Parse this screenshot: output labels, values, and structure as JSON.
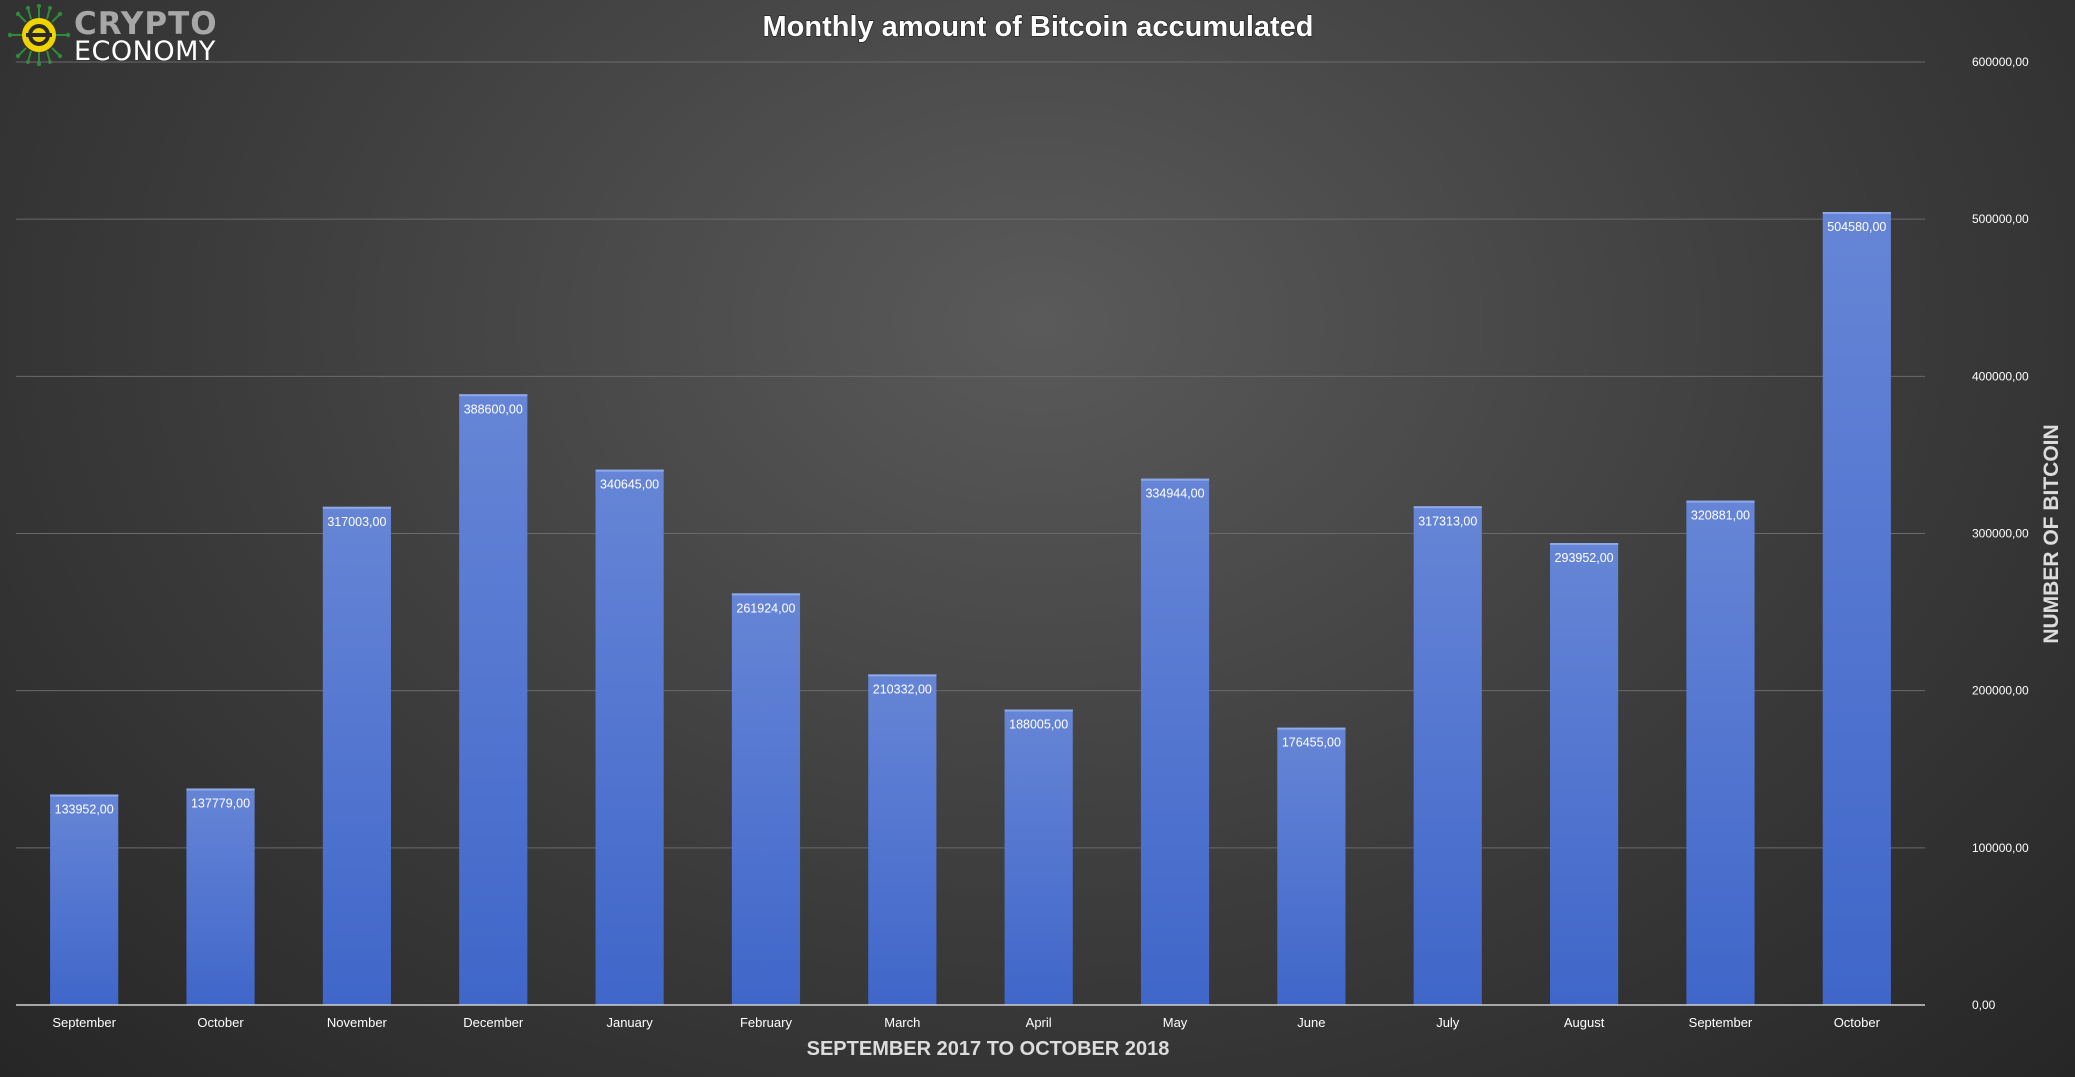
{
  "logo": {
    "line1": "CRYPTO",
    "line2": "ECONOMY"
  },
  "colors": {
    "bar_light": "#6685d6",
    "bar_dark": "#3f66c9",
    "text": "#ffffff",
    "grid": "#6a6a6a",
    "axis": "#cfcfcf"
  },
  "chart_data": {
    "type": "bar",
    "title": "Monthly amount of Bitcoin accumulated",
    "xlabel": "SEPTEMBER 2017 TO OCTOBER 2018",
    "ylabel": "NUMBER OF BITCOIN",
    "categories": [
      "September",
      "October",
      "November",
      "December",
      "January",
      "February",
      "March",
      "April",
      "May",
      "June",
      "July",
      "August",
      "September",
      "October"
    ],
    "values": [
      133952,
      137779,
      317003,
      388600,
      340645,
      261924,
      210332,
      188005,
      334944,
      176455,
      317313,
      293952,
      320881,
      504580
    ],
    "data_labels": [
      "133952,00",
      "137779,00",
      "317003,00",
      "388600,00",
      "340645,00",
      "261924,00",
      "210332,00",
      "188005,00",
      "334944,00",
      "176455,00",
      "317313,00",
      "293952,00",
      "320881,00",
      "504580,00"
    ],
    "yticks": [
      0,
      100000,
      200000,
      300000,
      400000,
      500000,
      600000
    ],
    "ytick_labels": [
      "0,00",
      "100000,00",
      "200000,00",
      "300000,00",
      "400000,00",
      "500000,00",
      "600000,00"
    ],
    "ylim": [
      0,
      600000
    ],
    "y_axis_side": "right",
    "grid": true,
    "legend": "none"
  }
}
